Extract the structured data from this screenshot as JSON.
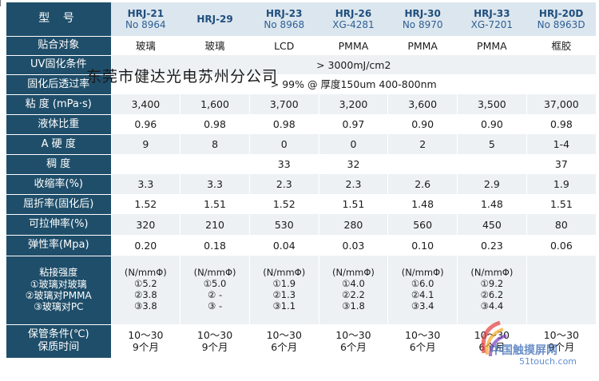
{
  "header": {
    "label": "型 号",
    "products": [
      {
        "model": "HRJ-21",
        "no": "No 8964"
      },
      {
        "model": "HRJ-29",
        "no": ""
      },
      {
        "model": "HRJ-23",
        "no": "No 8968"
      },
      {
        "model": "HRJ-26",
        "no": "XG-4281"
      },
      {
        "model": "HRJ-30",
        "no": "No 8970"
      },
      {
        "model": "HRJ-33",
        "no": "XG-7201"
      },
      {
        "model": "HRJ-20D",
        "no": "No  8963D"
      }
    ]
  },
  "rows": {
    "bond_target": {
      "label": "贴合对象",
      "values": [
        "玻璃",
        "玻璃",
        "LCD",
        "PMMA",
        "PMMA",
        "PMMA",
        "框胶"
      ]
    },
    "uv": {
      "label": "UV固化条件",
      "value": "> 3000mJ/cm2"
    },
    "transmit": {
      "label": "固化后透过率",
      "value": "> 99% @ 厚度150um 400-800nm"
    },
    "viscosity": {
      "label": "粘 度 (mPa·s)",
      "values": [
        "3,400",
        "1,600",
        "3,700",
        "3,200",
        "3,600",
        "3,500",
        "37,000"
      ]
    },
    "gravity": {
      "label": "液体比重",
      "values": [
        "0.96",
        "0.98",
        "0.98",
        "0.97",
        "0.90",
        "0.90",
        "0.98"
      ]
    },
    "hardness_a": {
      "label": "A 硬 度",
      "values": [
        "9",
        "8",
        "0",
        "0",
        "2",
        "5",
        "1-4"
      ]
    },
    "consistency": {
      "label": "稠 度",
      "values": [
        "",
        "",
        "33",
        "32",
        "",
        "",
        "37"
      ]
    },
    "shrink": {
      "label": "收缩率(%)",
      "values": [
        "3.3",
        "3.3",
        "2.3",
        "2.3",
        "2.6",
        "2.9",
        "1.9"
      ]
    },
    "refract": {
      "label": "屈折率(固化后)",
      "values": [
        "1.52",
        "1.51",
        "1.52",
        "1.51",
        "1.48",
        "1.48",
        "1.51"
      ]
    },
    "elong": {
      "label": "可拉伸率(%)",
      "values": [
        "320",
        "210",
        "530",
        "280",
        "560",
        "450",
        "80"
      ]
    },
    "elastic": {
      "label": "弹性率(Mpa)",
      "values": [
        "0.20",
        "0.18",
        "0.04",
        "0.03",
        "0.10",
        "0.23",
        "0.06"
      ]
    },
    "adhesion": {
      "label_lines": [
        "粘接强度",
        "①玻璃对玻璃",
        "②玻璃对PMMA",
        "③玻璃对PC"
      ],
      "values": [
        [
          "(N/mmΦ)",
          "①5.2",
          "②3.8",
          "③3.8"
        ],
        [
          "(N/mmΦ)",
          "①5.0",
          "② -",
          "③ -"
        ],
        [
          "(N/mmΦ)",
          "①1.9",
          "②1.3",
          "③1.1"
        ],
        [
          "(N/mmΦ)",
          "①4.0",
          "②2.2",
          "③1.8"
        ],
        [
          "(N/mmΦ)",
          "①6.0",
          "②4.1",
          "③3.4"
        ],
        [
          "(N/mmΦ)",
          "①9.2",
          "②6.2",
          "③4.4"
        ],
        [
          "",
          "",
          "",
          ""
        ]
      ]
    },
    "storage": {
      "label_lines": [
        "保管条件(℃)",
        "保质时间"
      ],
      "values": [
        [
          "10～30",
          "9个月"
        ],
        [
          "10～30",
          "9个月"
        ],
        [
          "10～30",
          "6个月"
        ],
        [
          "10～30",
          "6个月"
        ],
        [
          "10～30",
          "6个月"
        ],
        [
          "10～30",
          "6个月"
        ],
        [
          "10～30",
          "9个月"
        ]
      ]
    }
  },
  "watermark": "东莞市健达光电苏州分公司",
  "logo": {
    "text": "中国触摸屏网",
    "sub": "51touch.com"
  }
}
